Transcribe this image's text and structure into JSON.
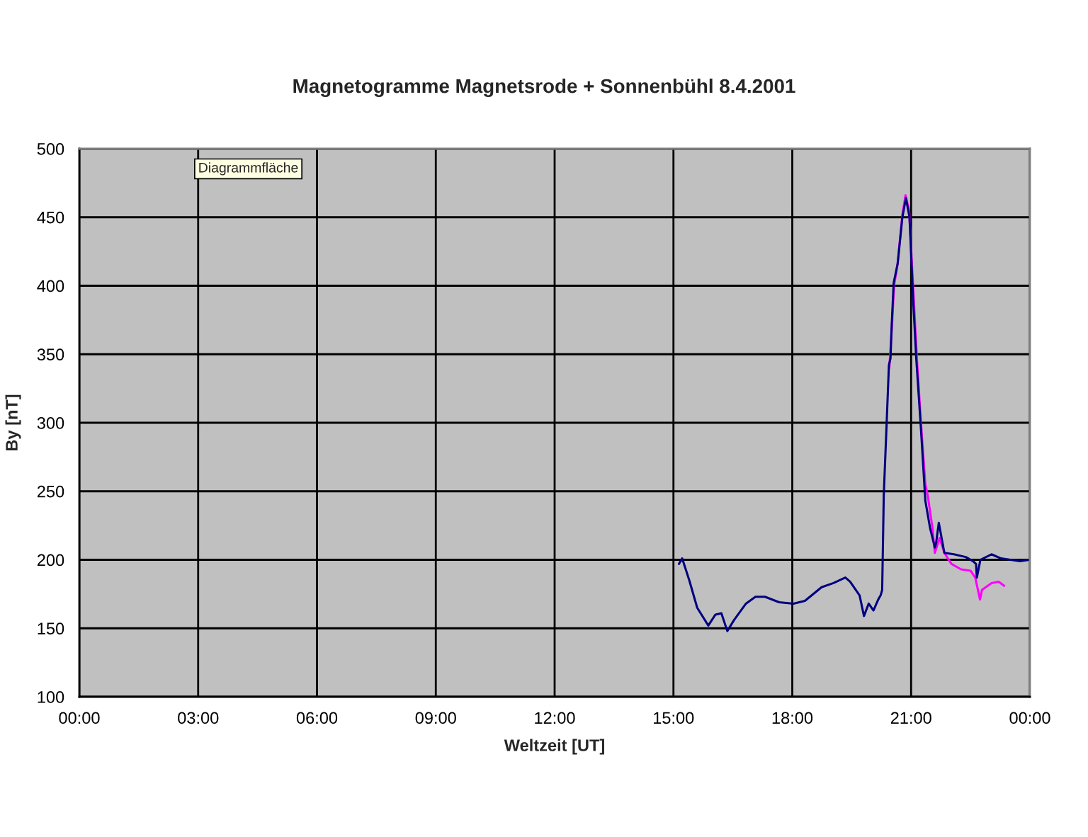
{
  "chart_data": {
    "type": "line",
    "title": "Magnetogramme Magnetsrode + Sonnenbühl 8.4.2001",
    "xlabel": "Weltzeit [UT]",
    "ylabel": "By [nT]",
    "annotations": [
      "Diagrammfläche"
    ],
    "xlim": [
      0,
      24
    ],
    "xticks": [
      {
        "value": 0,
        "label": "00:00"
      },
      {
        "value": 3,
        "label": "03:00"
      },
      {
        "value": 6,
        "label": "06:00"
      },
      {
        "value": 9,
        "label": "09:00"
      },
      {
        "value": 12,
        "label": "12:00"
      },
      {
        "value": 15,
        "label": "15:00"
      },
      {
        "value": 18,
        "label": "18:00"
      },
      {
        "value": 21,
        "label": "21:00"
      },
      {
        "value": 24,
        "label": "00:00"
      }
    ],
    "ylim": [
      100,
      500
    ],
    "yticks": [
      100,
      150,
      200,
      250,
      300,
      350,
      400,
      450,
      500
    ],
    "grid": true,
    "line_style": "solid",
    "series": [
      {
        "color": "#ff00ff",
        "x": [
          20.45,
          20.52,
          20.57,
          20.66,
          20.78,
          20.86,
          20.95,
          21.05,
          21.15,
          21.25,
          21.36,
          21.42,
          21.54,
          21.6,
          21.72,
          21.84,
          22.02,
          22.26,
          22.5,
          22.62,
          22.74,
          22.79,
          23.03,
          23.21,
          23.35
        ],
        "values": [
          340,
          372,
          400,
          416,
          452,
          466,
          455,
          400,
          345,
          300,
          255,
          247,
          223,
          205,
          216,
          205,
          197,
          193,
          192,
          187,
          171,
          178,
          183,
          184,
          181
        ]
      },
      {
        "color": "#000080",
        "x": [
          15.14,
          15.22,
          15.4,
          15.6,
          15.88,
          16.06,
          16.21,
          16.36,
          16.53,
          16.83,
          17.07,
          17.31,
          17.67,
          18.03,
          18.32,
          18.74,
          19.04,
          19.34,
          19.46,
          19.7,
          19.81,
          19.93,
          20.05,
          20.17,
          20.23,
          20.27,
          20.31,
          20.39,
          20.44,
          20.48,
          20.51,
          20.56,
          20.66,
          20.78,
          20.87,
          20.96,
          21.05,
          21.13,
          21.25,
          21.36,
          21.48,
          21.6,
          21.63,
          21.7,
          21.84,
          22.08,
          22.38,
          22.56,
          22.64,
          22.66,
          22.75,
          23.03,
          23.27,
          23.51,
          23.75,
          23.99
        ],
        "values": [
          197,
          201,
          185,
          165,
          152,
          160,
          161,
          148,
          156,
          168,
          173,
          173,
          169,
          168,
          170,
          180,
          183,
          187,
          184,
          174,
          159,
          168,
          163,
          171,
          174,
          178,
          247,
          305,
          342,
          347,
          371,
          402,
          416,
          450,
          464,
          450,
          391,
          347,
          295,
          243,
          223,
          209,
          212,
          227,
          205,
          204,
          202,
          199,
          197,
          187,
          200,
          204,
          201,
          200,
          199,
          200
        ]
      }
    ]
  }
}
